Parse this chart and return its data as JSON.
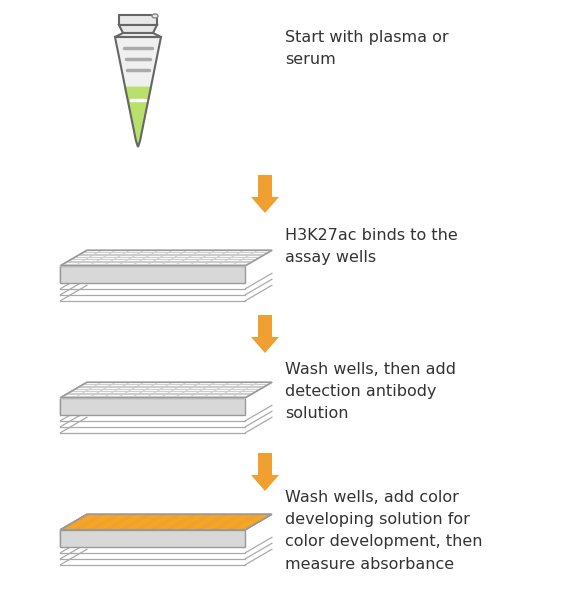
{
  "bg_color": "#ffffff",
  "arrow_color": "#f0a030",
  "text_color": "#333333",
  "tube_body_color": "#b8e06a",
  "tube_upper_color": "#f0f0f0",
  "tube_cap_color": "#e8e8e8",
  "tube_line_color": "#aaaaaa",
  "plate_top_color": "#f8f8f8",
  "plate_side_color": "#d8d8d8",
  "plate_side_dark": "#c0c0c0",
  "plate_grid_color": "#cccccc",
  "plate_orange_bg": "#f0a030",
  "plate_orange_well": "#f5a623",
  "steps": [
    "Start with plasma or\nserum",
    "H3K27ac binds to the\nassay wells",
    "Wash wells, then add\ndetection antibody\nsolution",
    "Wash wells, add color\ndeveloping solution for\ncolor development, then\nmeasure absorbance"
  ],
  "fig_width": 5.82,
  "fig_height": 6.1,
  "font_size": 11.5
}
